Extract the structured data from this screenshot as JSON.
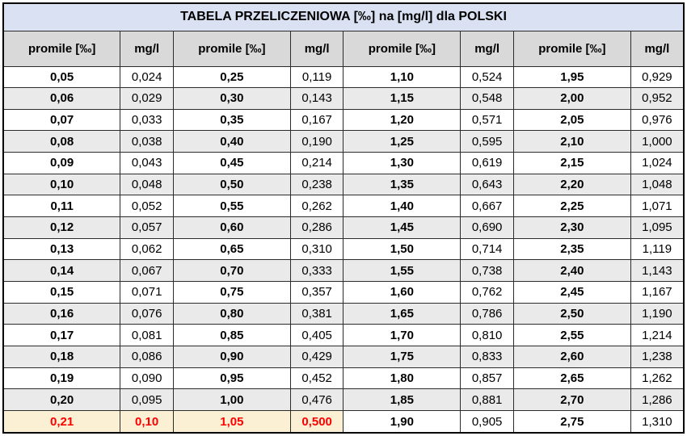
{
  "title": "TABELA PRZELICZENIOWA [‰] na [mg/l] dla POLSKI",
  "columns": [
    "promile [‰]",
    "mg/l",
    "promile [‰]",
    "mg/l",
    "promile [‰]",
    "mg/l",
    "promile [‰]",
    "mg/l"
  ],
  "rows": [
    [
      "0,05",
      "0,024",
      "0,25",
      "0,119",
      "1,10",
      "0,524",
      "1,95",
      "0,929"
    ],
    [
      "0,06",
      "0,029",
      "0,30",
      "0,143",
      "1,15",
      "0,548",
      "2,00",
      "0,952"
    ],
    [
      "0,07",
      "0,033",
      "0,35",
      "0,167",
      "1,20",
      "0,571",
      "2,05",
      "0,976"
    ],
    [
      "0,08",
      "0,038",
      "0,40",
      "0,190",
      "1,25",
      "0,595",
      "2,10",
      "1,000"
    ],
    [
      "0,09",
      "0,043",
      "0,45",
      "0,214",
      "1,30",
      "0,619",
      "2,15",
      "1,024"
    ],
    [
      "0,10",
      "0,048",
      "0,50",
      "0,238",
      "1,35",
      "0,643",
      "2,20",
      "1,048"
    ],
    [
      "0,11",
      "0,052",
      "0,55",
      "0,262",
      "1,40",
      "0,667",
      "2,25",
      "1,071"
    ],
    [
      "0,12",
      "0,057",
      "0,60",
      "0,286",
      "1,45",
      "0,690",
      "2,30",
      "1,095"
    ],
    [
      "0,13",
      "0,062",
      "0,65",
      "0,310",
      "1,50",
      "0,714",
      "2,35",
      "1,119"
    ],
    [
      "0,14",
      "0,067",
      "0,70",
      "0,333",
      "1,55",
      "0,738",
      "2,40",
      "1,143"
    ],
    [
      "0,15",
      "0,071",
      "0,75",
      "0,357",
      "1,60",
      "0,762",
      "2,45",
      "1,167"
    ],
    [
      "0,16",
      "0,076",
      "0,80",
      "0,381",
      "1,65",
      "0,786",
      "2,50",
      "1,190"
    ],
    [
      "0,17",
      "0,081",
      "0,85",
      "0,405",
      "1,70",
      "0,810",
      "2,55",
      "1,214"
    ],
    [
      "0,18",
      "0,086",
      "0,90",
      "0,429",
      "1,75",
      "0,833",
      "2,60",
      "1,238"
    ],
    [
      "0,19",
      "0,090",
      "0,95",
      "0,452",
      "1,80",
      "0,857",
      "2,65",
      "1,262"
    ],
    [
      "0,20",
      "0,095",
      "1,00",
      "0,476",
      "1,85",
      "0,881",
      "2,70",
      "1,286"
    ],
    [
      "0,21",
      "0,10",
      "1,05",
      "0,500",
      "1,90",
      "0,905",
      "2,75",
      "1,310"
    ]
  ],
  "highlight": {
    "row_index": 16,
    "cell_count": 4,
    "background": "#fbf0d3",
    "text_color": "#fe0000"
  },
  "colors": {
    "title_bg": "#d9e1f2",
    "header_bg": "#d9d9d9",
    "stripe_bg": "#eaeaea",
    "border": "#000000",
    "text": "#000000"
  }
}
